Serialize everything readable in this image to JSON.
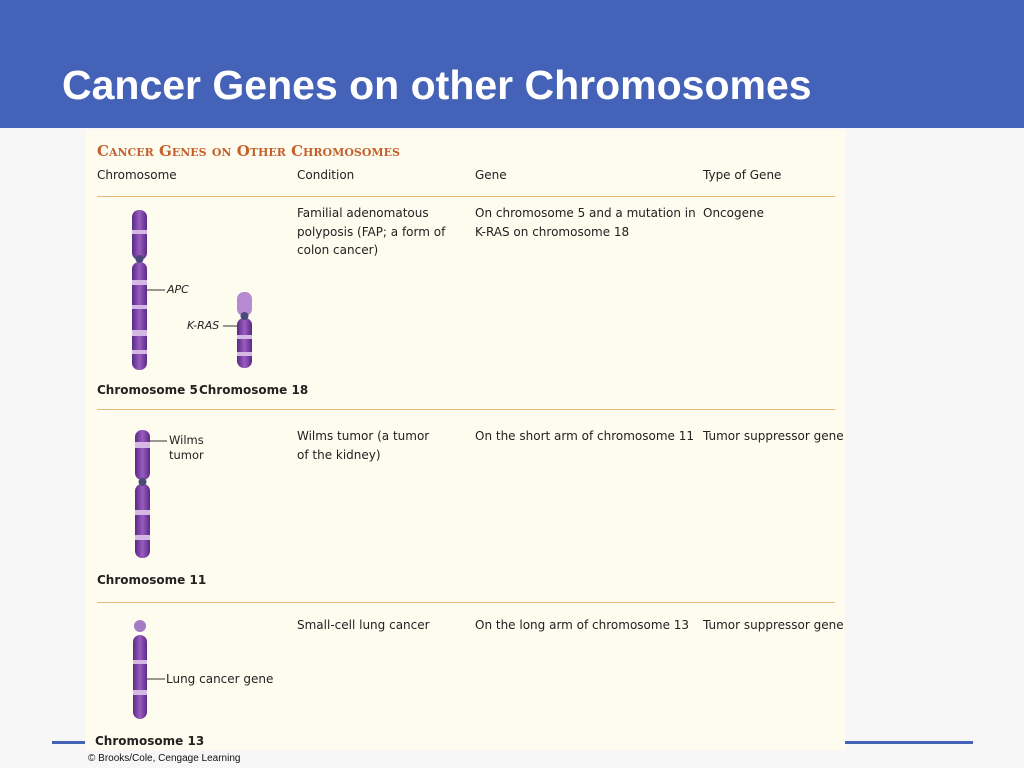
{
  "header": {
    "title": "Cancer Genes on other Chromosomes"
  },
  "figure": {
    "title": "Cancer Genes on Other Chromosomes",
    "columns": [
      "Chromosome",
      "Condition",
      "Gene",
      "Type of Gene"
    ],
    "rows": [
      {
        "chromosomes": [
          "Chromosome 5",
          "Chromosome 18"
        ],
        "labels": [
          "APC",
          "K-RAS"
        ],
        "condition": "Familial adenomatous polyposis (FAP; a form of colon cancer)",
        "gene": "On chromosome 5 and a mutation in K-RAS on chromosome 18",
        "type": "Oncogene"
      },
      {
        "chromosomes": [
          "Chromosome 11"
        ],
        "labels": [
          "Wilms tumor"
        ],
        "condition": "Wilms tumor (a tumor of the kidney)",
        "gene": "On the short arm of chromosome 11",
        "type": "Tumor suppressor gene"
      },
      {
        "chromosomes": [
          "Chromosome 13"
        ],
        "labels": [
          "Lung cancer gene"
        ],
        "condition": "Small-cell lung cancer",
        "gene": "On the long arm of chromosome 13",
        "type": "Tumor suppressor gene"
      }
    ],
    "credit": "© Brooks/Cole, Cengage Learning"
  }
}
